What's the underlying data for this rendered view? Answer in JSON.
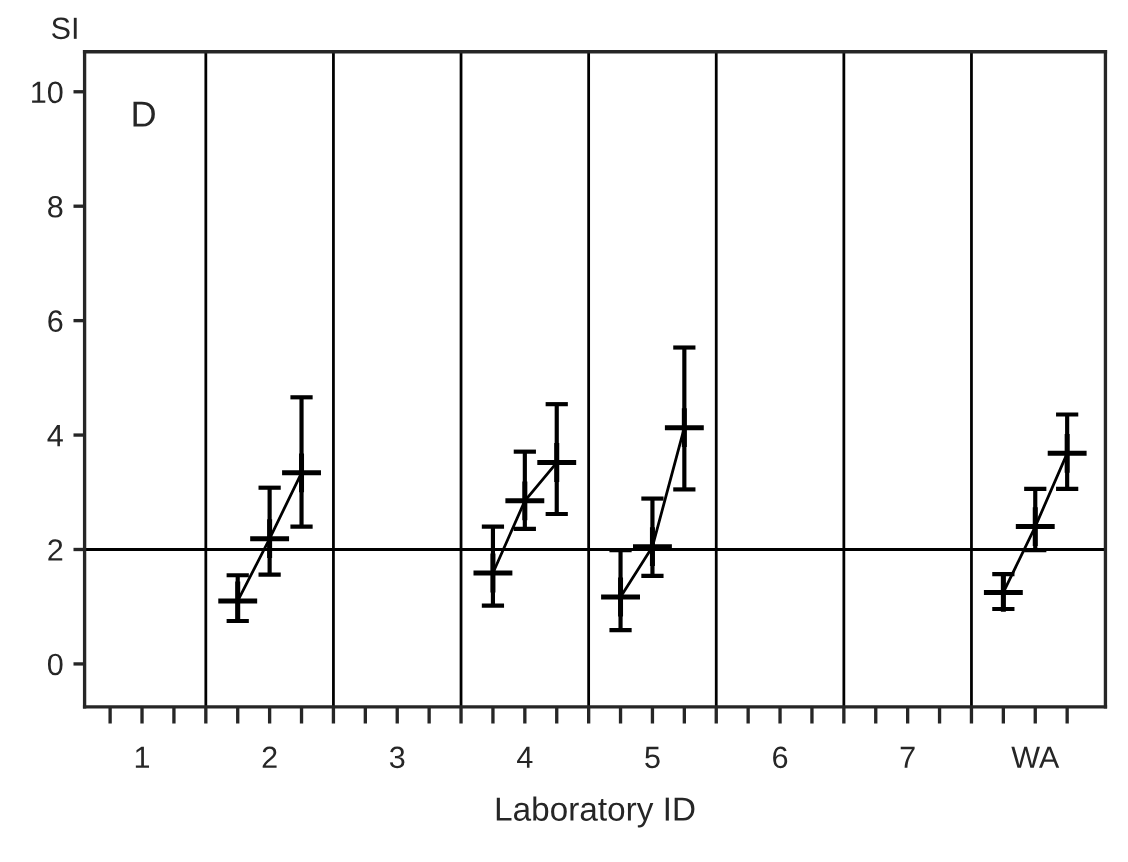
{
  "chart_data": {
    "type": "line",
    "xlabel": "Laboratory ID",
    "ylabel": "SI",
    "annotations": [
      "D"
    ],
    "xlim": [
      0.55,
      8.55
    ],
    "ylim": [
      -0.75,
      10.7
    ],
    "xticks": [
      {
        "value": 0.75,
        "label": null
      },
      {
        "value": 1,
        "label": "1"
      },
      {
        "value": 1.25,
        "label": null
      },
      {
        "value": 1.5,
        "label": null
      },
      {
        "value": 1.75,
        "label": null
      },
      {
        "value": 2,
        "label": "2"
      },
      {
        "value": 2.25,
        "label": null
      },
      {
        "value": 2.5,
        "label": null
      },
      {
        "value": 2.75,
        "label": null
      },
      {
        "value": 3,
        "label": "3"
      },
      {
        "value": 3.25,
        "label": null
      },
      {
        "value": 3.5,
        "label": null
      },
      {
        "value": 3.75,
        "label": null
      },
      {
        "value": 4,
        "label": "4"
      },
      {
        "value": 4.25,
        "label": null
      },
      {
        "value": 4.5,
        "label": null
      },
      {
        "value": 4.75,
        "label": null
      },
      {
        "value": 5,
        "label": "5"
      },
      {
        "value": 5.25,
        "label": null
      },
      {
        "value": 5.5,
        "label": null
      },
      {
        "value": 5.75,
        "label": null
      },
      {
        "value": 6,
        "label": "6"
      },
      {
        "value": 6.25,
        "label": null
      },
      {
        "value": 6.5,
        "label": null
      },
      {
        "value": 6.75,
        "label": null
      },
      {
        "value": 7,
        "label": "7"
      },
      {
        "value": 7.25,
        "label": null
      },
      {
        "value": 7.5,
        "label": null
      },
      {
        "value": 7.75,
        "label": null
      },
      {
        "value": 8,
        "label": "WA"
      },
      {
        "value": 8.25,
        "label": null
      }
    ],
    "yticks": [
      0,
      2,
      4,
      6,
      8,
      10
    ],
    "grid": false,
    "legend": false,
    "marker": "cross",
    "line_style": "solid",
    "ref_lines": [
      {
        "axis": "y",
        "value": 2
      },
      {
        "axis": "x",
        "value": 1.5
      },
      {
        "axis": "x",
        "value": 2.5
      },
      {
        "axis": "x",
        "value": 3.5
      },
      {
        "axis": "x",
        "value": 4.5
      },
      {
        "axis": "x",
        "value": 5.5
      },
      {
        "axis": "x",
        "value": 6.5
      },
      {
        "axis": "x",
        "value": 7.5
      }
    ],
    "series": [
      {
        "color": "#000000",
        "x": [
          1.75,
          2,
          2.25
        ],
        "values": [
          1.1,
          2.19,
          3.34
        ],
        "errors": [
          [
            0.75,
            1.55
          ],
          [
            1.56,
            3.08
          ],
          [
            2.4,
            4.66
          ]
        ]
      },
      {
        "color": "#000000",
        "x": [
          3.75,
          4,
          4.25
        ],
        "values": [
          1.59,
          2.85,
          3.52
        ],
        "errors": [
          [
            1.02,
            2.4
          ],
          [
            2.36,
            3.71
          ],
          [
            2.62,
            4.54
          ]
        ]
      },
      {
        "color": "#000000",
        "x": [
          4.75,
          5,
          5.25
        ],
        "values": [
          1.17,
          2.05,
          4.13
        ],
        "errors": [
          [
            0.59,
            1.99
          ],
          [
            1.54,
            2.89
          ],
          [
            3.05,
            5.53
          ]
        ]
      },
      {
        "color": "#000000",
        "x": [
          7.75,
          8,
          8.25
        ],
        "values": [
          1.25,
          2.4,
          3.68
        ],
        "errors": [
          [
            0.96,
            1.57
          ],
          [
            1.99,
            3.06
          ],
          [
            3.06,
            4.36
          ]
        ]
      }
    ]
  }
}
